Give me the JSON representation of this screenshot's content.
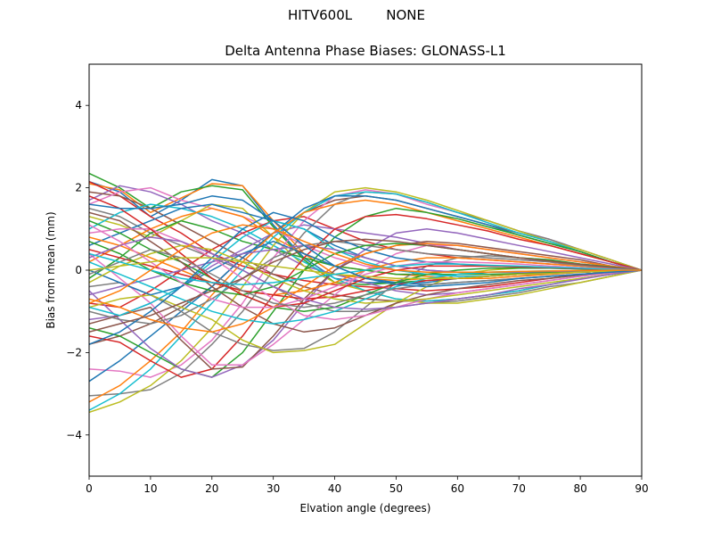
{
  "figure": {
    "suptitle": "HITV600L        NONE"
  },
  "chart_data": {
    "type": "line",
    "title": "Delta Antenna Phase Biases: GLONASS-L1",
    "xlabel": "Elvation angle (degrees)",
    "ylabel": "Bias from mean (mm)",
    "xlim": [
      0,
      90
    ],
    "ylim": [
      -5,
      5
    ],
    "xticks": [
      0,
      10,
      20,
      30,
      40,
      50,
      60,
      70,
      80,
      90
    ],
    "yticks": [
      -4,
      -2,
      0,
      2,
      4
    ],
    "xtick_labels": [
      "0",
      "10",
      "20",
      "30",
      "40",
      "50",
      "60",
      "70",
      "80",
      "90"
    ],
    "ytick_labels": [
      "−4",
      "−2",
      "0",
      "2",
      "4"
    ],
    "grid": false,
    "legend": "none",
    "x": [
      0,
      5,
      10,
      15,
      20,
      25,
      30,
      35,
      40,
      45,
      50,
      55,
      60,
      65,
      70,
      75,
      80,
      85,
      90
    ],
    "color_cycle": [
      "#1f77b4",
      "#ff7f0e",
      "#2ca02c",
      "#d62728",
      "#9467bd",
      "#8c564b",
      "#e377c2",
      "#7f7f7f",
      "#bcbd22",
      "#17becf"
    ],
    "series": [
      {
        "values": [
          2.15,
          1.9,
          1.3,
          1.7,
          2.2,
          2.05,
          1.1,
          0.3,
          -0.2,
          -0.3,
          -0.3,
          -0.3,
          -0.2,
          -0.15,
          -0.1,
          -0.1,
          -0.05,
          -0.02,
          0
        ]
      },
      {
        "values": [
          2.1,
          1.95,
          1.4,
          1.75,
          2.1,
          2.05,
          1.2,
          0.4,
          -0.1,
          -0.2,
          -0.25,
          -0.2,
          -0.2,
          -0.15,
          -0.1,
          -0.1,
          -0.05,
          -0.02,
          0
        ]
      },
      {
        "values": [
          2.35,
          2.0,
          1.5,
          1.9,
          2.05,
          1.95,
          1.05,
          0.25,
          -0.3,
          -0.35,
          -0.3,
          -0.25,
          -0.2,
          -0.15,
          -0.1,
          -0.08,
          -0.05,
          -0.02,
          0
        ]
      },
      {
        "values": [
          2.15,
          1.8,
          1.3,
          0.9,
          0.4,
          0.1,
          -0.1,
          -0.25,
          -0.35,
          -0.4,
          -0.45,
          -0.5,
          -0.45,
          -0.4,
          -0.3,
          -0.2,
          -0.1,
          -0.05,
          0
        ]
      },
      {
        "values": [
          1.7,
          2.05,
          1.9,
          1.6,
          1.2,
          0.9,
          0.5,
          0.1,
          -0.1,
          -0.3,
          -0.5,
          -0.6,
          -0.55,
          -0.45,
          -0.35,
          -0.25,
          -0.15,
          -0.05,
          0
        ]
      },
      {
        "values": [
          1.9,
          1.8,
          1.5,
          1.1,
          0.7,
          0.3,
          -0.1,
          -0.4,
          -0.6,
          -0.7,
          -0.75,
          -0.75,
          -0.7,
          -0.6,
          -0.5,
          -0.35,
          -0.2,
          -0.1,
          0
        ]
      },
      {
        "values": [
          1.6,
          1.9,
          2.0,
          1.7,
          1.5,
          1.3,
          1.0,
          0.6,
          0.3,
          0.1,
          0.0,
          -0.1,
          -0.15,
          -0.15,
          -0.1,
          -0.08,
          -0.05,
          -0.02,
          0
        ]
      },
      {
        "values": [
          1.5,
          1.3,
          0.9,
          0.6,
          0.3,
          0.0,
          -0.4,
          -0.8,
          -1.0,
          -1.0,
          -0.9,
          -0.8,
          -0.75,
          -0.65,
          -0.55,
          -0.4,
          -0.3,
          -0.15,
          0
        ]
      },
      {
        "values": [
          1.3,
          1.1,
          0.8,
          1.2,
          1.6,
          1.5,
          0.8,
          0.1,
          -0.3,
          -0.5,
          -0.7,
          -0.8,
          -0.8,
          -0.7,
          -0.6,
          -0.45,
          -0.3,
          -0.15,
          0
        ]
      },
      {
        "values": [
          1.0,
          1.4,
          1.6,
          1.5,
          1.3,
          1.0,
          0.6,
          0.2,
          -0.2,
          -0.5,
          -0.7,
          -0.75,
          -0.7,
          -0.6,
          -0.5,
          -0.35,
          -0.2,
          -0.1,
          0
        ]
      },
      {
        "values": [
          0.6,
          0.9,
          1.2,
          1.5,
          1.6,
          1.4,
          1.2,
          1.0,
          0.6,
          0.3,
          0.1,
          0.0,
          -0.05,
          -0.1,
          -0.1,
          -0.08,
          -0.05,
          -0.02,
          0
        ]
      },
      {
        "values": [
          0.2,
          0.6,
          1.0,
          1.3,
          1.5,
          1.3,
          0.8,
          0.4,
          0.1,
          0.0,
          -0.1,
          -0.15,
          -0.2,
          -0.2,
          -0.15,
          -0.1,
          -0.05,
          -0.02,
          0
        ]
      },
      {
        "values": [
          -0.2,
          0.3,
          0.9,
          1.2,
          1.0,
          0.7,
          0.5,
          0.3,
          0.1,
          0.0,
          -0.1,
          -0.1,
          -0.1,
          -0.1,
          -0.08,
          -0.05,
          -0.03,
          -0.01,
          0
        ]
      },
      {
        "values": [
          -0.8,
          -0.9,
          -0.5,
          0.0,
          0.5,
          0.9,
          1.2,
          1.3,
          1.0,
          0.7,
          0.5,
          0.4,
          0.3,
          0.25,
          0.2,
          0.15,
          0.1,
          0.05,
          0
        ]
      },
      {
        "values": [
          -1.2,
          -1.1,
          -0.8,
          -0.4,
          0.1,
          0.5,
          0.9,
          1.1,
          1.0,
          0.9,
          0.8,
          0.65,
          0.5,
          0.4,
          0.3,
          0.2,
          0.1,
          0.05,
          0
        ]
      },
      {
        "values": [
          -1.8,
          -1.6,
          -1.3,
          -0.9,
          -0.4,
          0.3,
          0.9,
          1.4,
          1.7,
          1.8,
          1.7,
          1.5,
          1.3,
          1.1,
          0.9,
          0.7,
          0.45,
          0.2,
          0
        ]
      },
      {
        "values": [
          -2.4,
          -2.45,
          -2.6,
          -2.3,
          -1.7,
          -0.8,
          0.3,
          1.2,
          1.8,
          1.95,
          1.85,
          1.6,
          1.4,
          1.2,
          0.95,
          0.75,
          0.5,
          0.25,
          0
        ]
      },
      {
        "values": [
          -3.05,
          -3.0,
          -2.9,
          -2.5,
          -1.8,
          -1.0,
          0.0,
          0.9,
          1.6,
          1.9,
          1.85,
          1.65,
          1.4,
          1.2,
          0.95,
          0.75,
          0.5,
          0.25,
          0
        ]
      },
      {
        "values": [
          -3.45,
          -3.2,
          -2.8,
          -2.2,
          -1.4,
          -0.4,
          0.6,
          1.4,
          1.9,
          2.0,
          1.9,
          1.7,
          1.45,
          1.2,
          0.95,
          0.7,
          0.5,
          0.25,
          0
        ]
      },
      {
        "values": [
          -3.4,
          -3.0,
          -2.4,
          -1.6,
          -0.8,
          0.0,
          0.8,
          1.4,
          1.8,
          1.9,
          1.85,
          1.65,
          1.4,
          1.15,
          0.9,
          0.7,
          0.45,
          0.2,
          0
        ]
      },
      {
        "values": [
          -2.7,
          -2.2,
          -1.6,
          -1.0,
          -0.4,
          0.3,
          0.9,
          1.5,
          1.8,
          1.8,
          1.7,
          1.5,
          1.3,
          1.1,
          0.85,
          0.65,
          0.45,
          0.2,
          0
        ]
      },
      {
        "values": [
          -3.2,
          -2.8,
          -2.2,
          -1.5,
          -0.6,
          0.2,
          0.9,
          1.4,
          1.6,
          1.7,
          1.6,
          1.4,
          1.2,
          1.0,
          0.8,
          0.6,
          0.4,
          0.2,
          0
        ]
      },
      {
        "values": [
          -1.4,
          -1.6,
          -2.0,
          -2.4,
          -2.6,
          -2.0,
          -1.0,
          0.0,
          0.8,
          1.3,
          1.5,
          1.4,
          1.25,
          1.05,
          0.85,
          0.65,
          0.45,
          0.2,
          0
        ]
      },
      {
        "values": [
          -1.6,
          -1.75,
          -2.2,
          -2.6,
          -2.4,
          -1.6,
          -0.6,
          0.3,
          1.0,
          1.3,
          1.35,
          1.25,
          1.1,
          0.95,
          0.75,
          0.6,
          0.4,
          0.2,
          0
        ]
      },
      {
        "values": [
          -0.5,
          -1.2,
          -1.9,
          -2.4,
          -2.6,
          -2.3,
          -1.7,
          -0.8,
          0.0,
          0.5,
          0.9,
          1.0,
          0.9,
          0.75,
          0.6,
          0.45,
          0.3,
          0.15,
          0
        ]
      },
      {
        "values": [
          -1.3,
          -1.1,
          -0.9,
          -1.7,
          -2.4,
          -2.35,
          -1.6,
          -0.7,
          0.0,
          0.4,
          0.6,
          0.7,
          0.65,
          0.55,
          0.45,
          0.35,
          0.25,
          0.1,
          0
        ]
      },
      {
        "values": [
          0.4,
          -0.2,
          -0.8,
          -1.6,
          -2.3,
          -2.3,
          -1.8,
          -1.2,
          -0.6,
          0.0,
          0.4,
          0.6,
          0.6,
          0.5,
          0.4,
          0.3,
          0.2,
          0.1,
          0
        ]
      },
      {
        "values": [
          -0.4,
          -0.3,
          -0.6,
          -1.0,
          -1.5,
          -1.8,
          -1.95,
          -1.9,
          -1.5,
          -0.9,
          -0.3,
          0.1,
          0.3,
          0.35,
          0.3,
          0.25,
          0.15,
          0.08,
          0
        ]
      },
      {
        "values": [
          -0.9,
          -0.7,
          -0.6,
          -0.9,
          -1.2,
          -1.7,
          -2.0,
          -1.95,
          -1.8,
          -1.3,
          -0.8,
          -0.4,
          -0.1,
          0.0,
          0.05,
          0.05,
          0.03,
          0.01,
          0
        ]
      },
      {
        "values": [
          -0.9,
          -1.1,
          -0.8,
          -0.4,
          0.2,
          0.8,
          1.2,
          1.0,
          0.5,
          0.2,
          0.0,
          -0.1,
          -0.15,
          -0.15,
          -0.1,
          -0.08,
          -0.05,
          -0.02,
          0
        ]
      },
      {
        "values": [
          0.0,
          -0.3,
          -0.6,
          -0.4,
          0.0,
          0.4,
          0.7,
          0.4,
          0.1,
          -0.2,
          -0.3,
          -0.35,
          -0.3,
          -0.25,
          -0.2,
          -0.15,
          -0.1,
          -0.05,
          0
        ]
      },
      {
        "values": [
          0.8,
          0.6,
          0.3,
          0.0,
          -0.3,
          -0.5,
          -0.6,
          -0.5,
          -0.3,
          0.0,
          0.2,
          0.3,
          0.3,
          0.25,
          0.2,
          0.15,
          0.1,
          0.05,
          0
        ]
      },
      {
        "values": [
          1.2,
          0.9,
          0.5,
          0.2,
          -0.2,
          -0.6,
          -0.9,
          -1.0,
          -0.9,
          -0.6,
          -0.3,
          -0.1,
          0.0,
          0.05,
          0.05,
          0.05,
          0.03,
          0.01,
          0
        ]
      },
      {
        "values": [
          0.5,
          0.3,
          0.1,
          -0.1,
          -0.3,
          -0.5,
          -0.6,
          -0.7,
          -0.65,
          -0.5,
          -0.35,
          -0.25,
          -0.2,
          -0.15,
          -0.1,
          -0.08,
          -0.05,
          -0.02,
          0
        ]
      },
      {
        "values": [
          -0.6,
          -0.4,
          -0.2,
          0.0,
          0.2,
          0.4,
          0.5,
          0.6,
          0.5,
          0.3,
          0.1,
          0.0,
          -0.05,
          -0.05,
          -0.05,
          -0.03,
          -0.02,
          -0.01,
          0
        ]
      },
      {
        "values": [
          1.4,
          1.2,
          0.7,
          0.2,
          -0.4,
          -0.9,
          -1.3,
          -1.5,
          -1.4,
          -1.1,
          -0.8,
          -0.6,
          -0.45,
          -0.35,
          -0.25,
          -0.2,
          -0.12,
          -0.05,
          0
        ]
      },
      {
        "values": [
          0.9,
          1.0,
          1.0,
          0.7,
          0.3,
          -0.2,
          -0.7,
          -1.1,
          -1.2,
          -1.1,
          -0.9,
          -0.7,
          -0.55,
          -0.45,
          -0.35,
          -0.25,
          -0.15,
          -0.07,
          0
        ]
      },
      {
        "values": [
          -1.0,
          -1.2,
          -1.3,
          -1.1,
          -0.7,
          -0.2,
          0.3,
          0.6,
          0.7,
          0.6,
          0.5,
          0.4,
          0.35,
          0.3,
          0.25,
          0.2,
          0.12,
          0.06,
          0
        ]
      },
      {
        "values": [
          -0.3,
          0.1,
          0.4,
          0.6,
          0.5,
          0.2,
          -0.2,
          -0.5,
          -0.7,
          -0.8,
          -0.75,
          -0.7,
          -0.6,
          -0.5,
          -0.4,
          -0.3,
          -0.2,
          -0.1,
          0
        ]
      },
      {
        "values": [
          0.2,
          -0.1,
          -0.4,
          -0.7,
          -1.0,
          -1.2,
          -1.3,
          -1.2,
          -1.0,
          -0.7,
          -0.4,
          -0.2,
          -0.1,
          -0.05,
          -0.03,
          -0.02,
          -0.01,
          0.0,
          0
        ]
      },
      {
        "values": [
          -1.8,
          -1.5,
          -1.0,
          -0.4,
          0.3,
          1.0,
          1.4,
          1.2,
          0.8,
          0.5,
          0.3,
          0.2,
          0.15,
          0.1,
          0.08,
          0.06,
          0.04,
          0.02,
          0
        ]
      },
      {
        "values": [
          -0.7,
          -0.9,
          -1.2,
          -1.4,
          -1.5,
          -1.3,
          -0.9,
          -0.4,
          0.1,
          0.4,
          0.6,
          0.65,
          0.6,
          0.5,
          0.4,
          0.3,
          0.2,
          0.1,
          0
        ]
      },
      {
        "values": [
          0.7,
          0.4,
          0.0,
          -0.3,
          -0.5,
          -0.6,
          -0.4,
          0.0,
          0.4,
          0.6,
          0.65,
          0.6,
          0.5,
          0.4,
          0.3,
          0.25,
          0.15,
          0.08,
          0
        ]
      },
      {
        "values": [
          1.8,
          1.5,
          1.0,
          0.4,
          -0.2,
          -0.6,
          -0.9,
          -0.8,
          -0.5,
          -0.2,
          0.0,
          0.1,
          0.1,
          0.1,
          0.08,
          0.06,
          0.04,
          0.02,
          0
        ]
      },
      {
        "values": [
          0.3,
          0.6,
          0.8,
          0.7,
          0.4,
          0.0,
          -0.4,
          -0.7,
          -0.9,
          -0.95,
          -0.9,
          -0.8,
          -0.7,
          -0.6,
          -0.45,
          -0.35,
          -0.22,
          -0.1,
          0
        ]
      },
      {
        "values": [
          -1.5,
          -1.3,
          -1.1,
          -0.8,
          -0.5,
          -0.2,
          0.2,
          0.5,
          0.7,
          0.75,
          0.7,
          0.6,
          0.5,
          0.4,
          0.3,
          0.22,
          0.14,
          0.07,
          0
        ]
      },
      {
        "values": [
          1.1,
          0.7,
          0.2,
          -0.3,
          -0.7,
          -0.9,
          -0.9,
          -0.7,
          -0.4,
          -0.1,
          0.1,
          0.2,
          0.2,
          0.18,
          0.15,
          0.1,
          0.06,
          0.03,
          0
        ]
      },
      {
        "values": [
          -0.1,
          0.2,
          0.5,
          0.3,
          -0.1,
          -0.5,
          -0.8,
          -0.9,
          -0.8,
          -0.6,
          -0.45,
          -0.35,
          -0.3,
          -0.25,
          -0.2,
          -0.15,
          -0.1,
          -0.05,
          0
        ]
      },
      {
        "values": [
          0.0,
          0.1,
          0.2,
          0.3,
          0.3,
          0.2,
          0.1,
          0.0,
          -0.1,
          -0.15,
          -0.2,
          -0.2,
          -0.2,
          -0.15,
          -0.1,
          -0.08,
          -0.05,
          -0.02,
          0
        ]
      },
      {
        "values": [
          0.4,
          0.2,
          0.0,
          -0.2,
          -0.3,
          -0.35,
          -0.3,
          -0.2,
          -0.1,
          0.0,
          0.1,
          0.15,
          0.15,
          0.12,
          0.1,
          0.07,
          0.05,
          0.02,
          0
        ]
      },
      {
        "values": [
          1.6,
          1.5,
          1.5,
          1.6,
          1.8,
          1.7,
          1.2,
          0.6,
          0.1,
          -0.2,
          -0.35,
          -0.4,
          -0.35,
          -0.3,
          -0.2,
          -0.15,
          -0.1,
          -0.05,
          0
        ]
      },
      {
        "values": [
          -0.8,
          -0.5,
          0.0,
          0.5,
          0.9,
          1.1,
          1.0,
          0.7,
          0.4,
          0.15,
          0.0,
          -0.05,
          -0.05,
          -0.05,
          -0.03,
          -0.02,
          -0.01,
          0.0,
          0
        ]
      }
    ]
  }
}
